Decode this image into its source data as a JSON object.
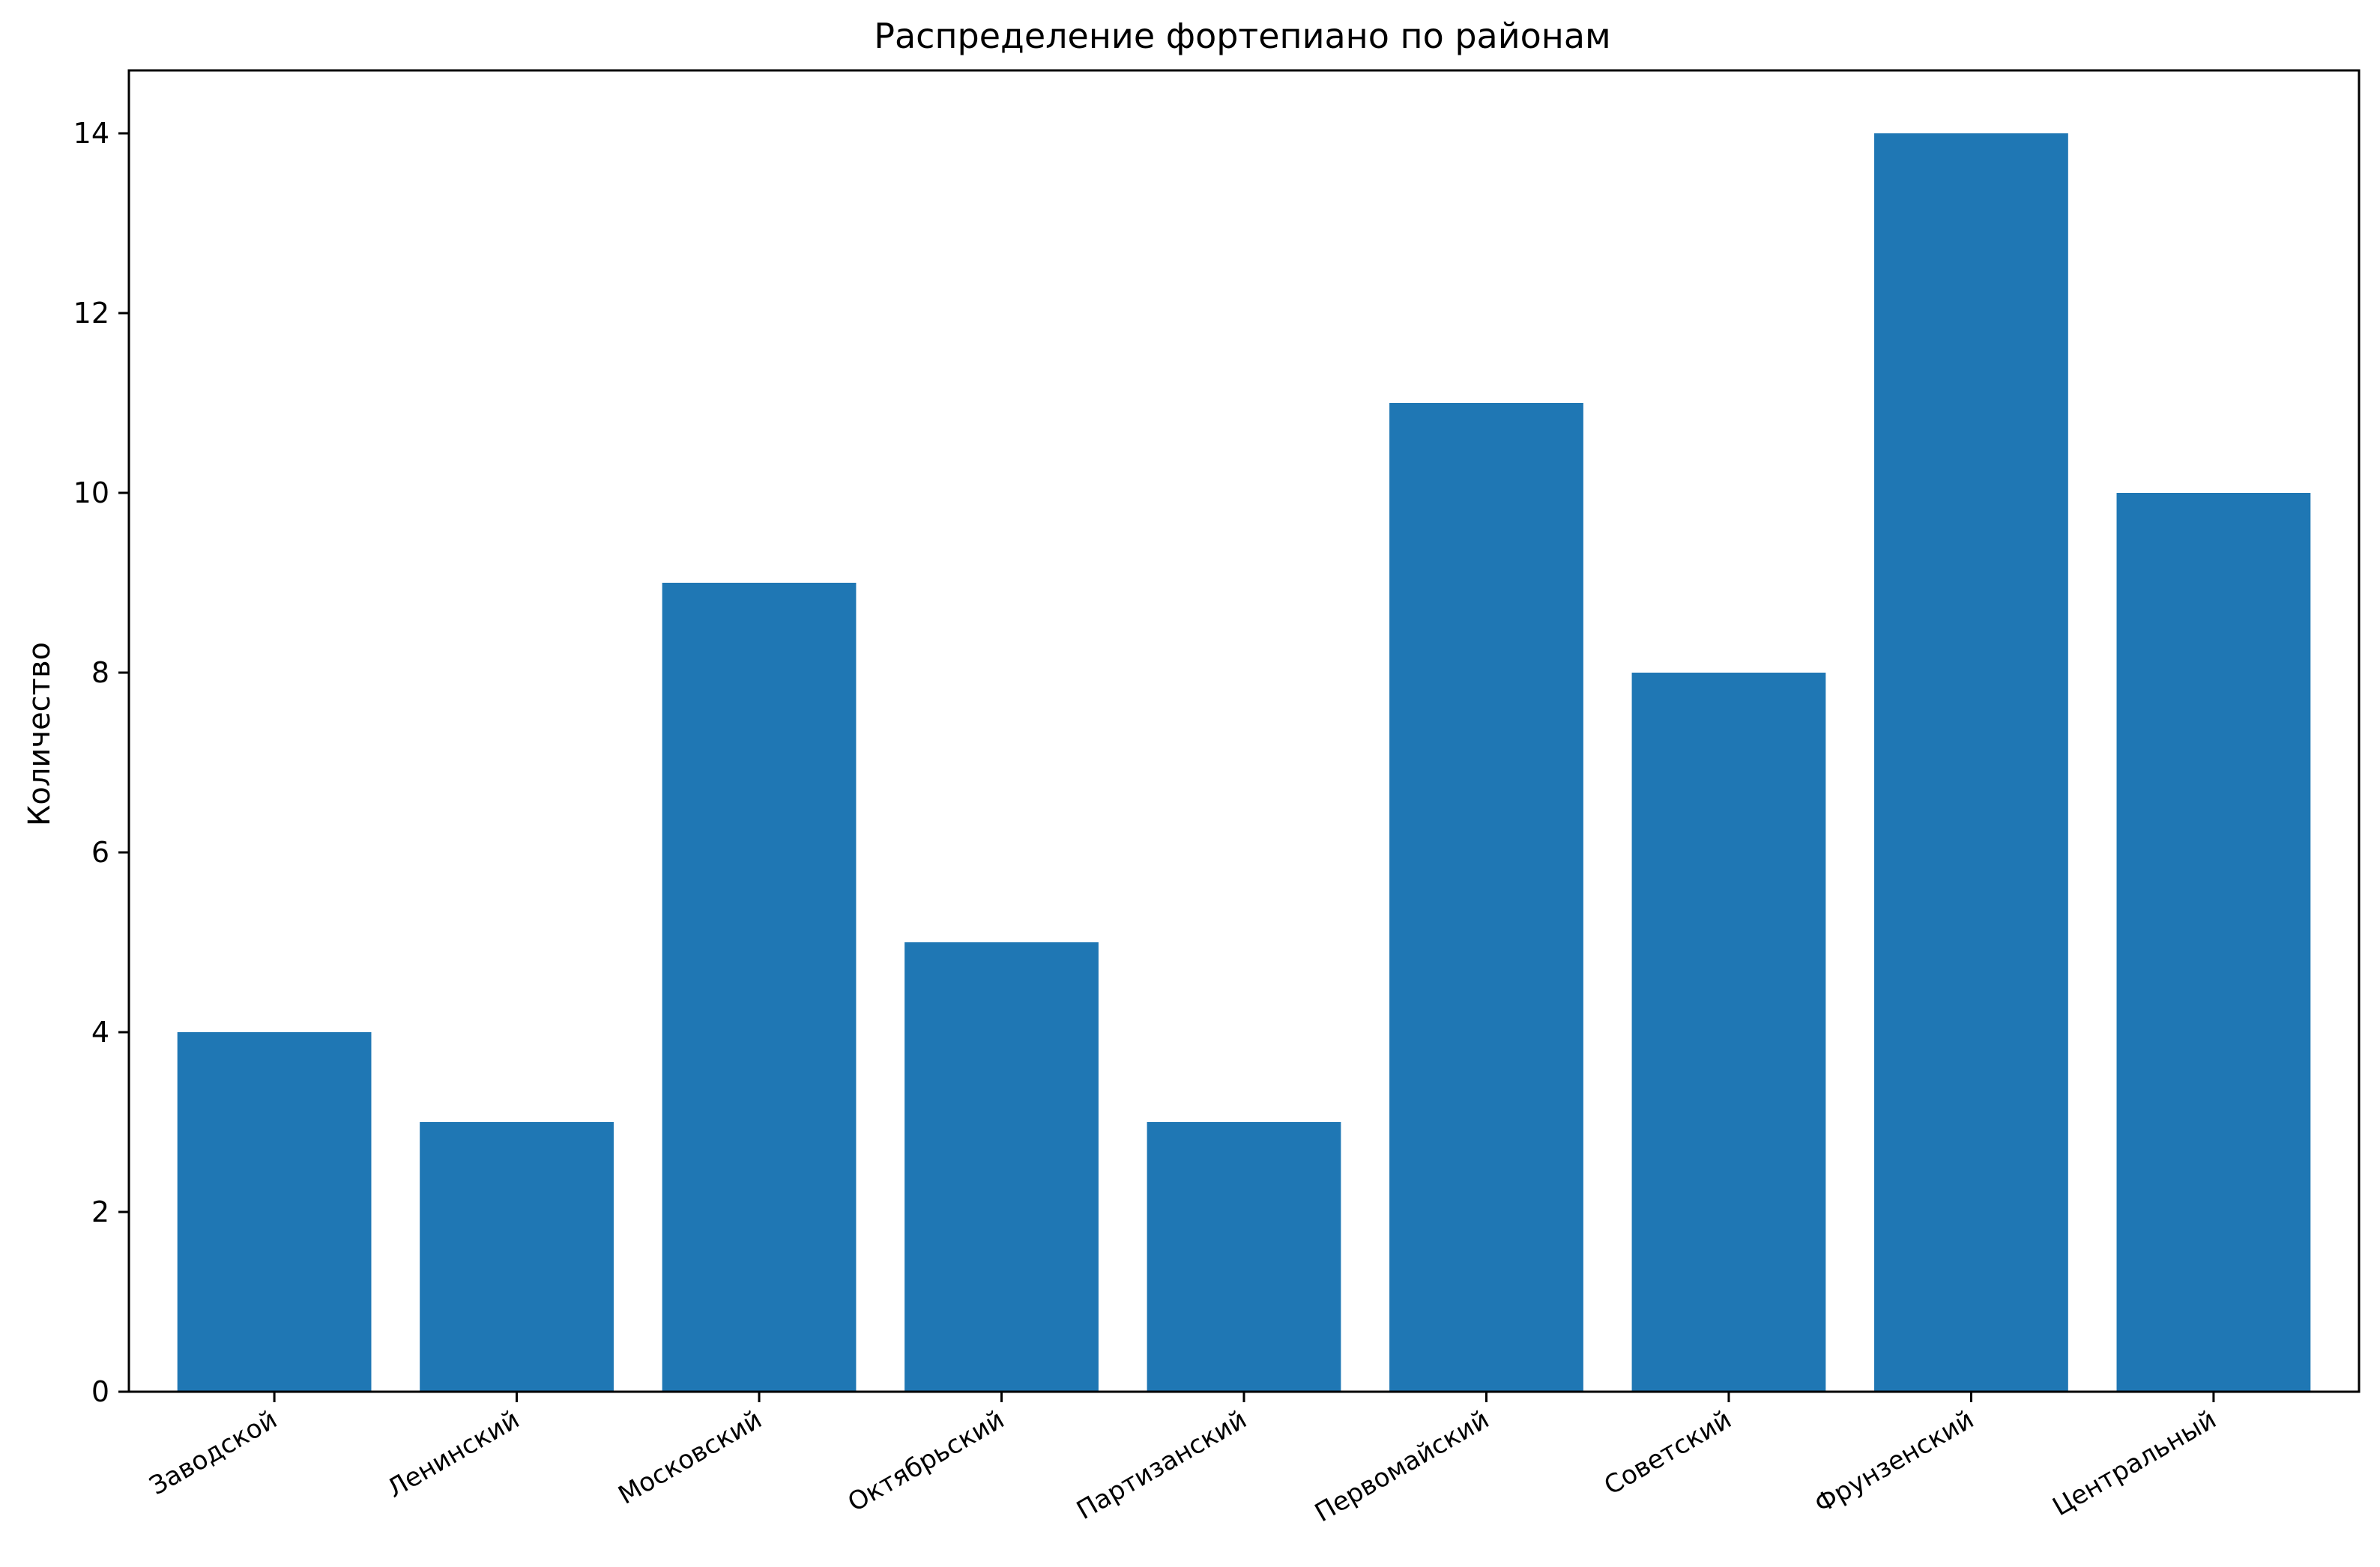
{
  "chart_data": {
    "type": "bar",
    "title": "Распределение фортепиано по районам",
    "xlabel": "",
    "ylabel": "Количество",
    "categories": [
      "Заводской",
      "Ленинский",
      "Московский",
      "Октябрьский",
      "Партизанский",
      "Первомайский",
      "Советский",
      "Фрунзенский",
      "Центральный"
    ],
    "values": [
      4,
      3,
      9,
      5,
      3,
      11,
      8,
      14,
      10
    ],
    "ylim": [
      0,
      14.7
    ],
    "yticks": [
      0,
      2,
      4,
      6,
      8,
      10,
      12,
      14
    ],
    "bar_color": "#1f77b4",
    "grid": false,
    "legend": "none",
    "xtick_rotation": "30 degrees"
  }
}
